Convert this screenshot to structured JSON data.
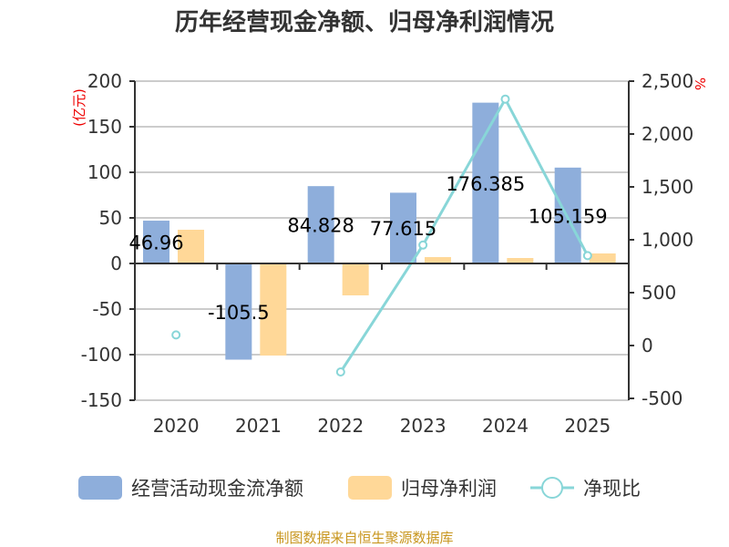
{
  "chart_data": {
    "type": "bar",
    "title": "历年经营现金净额、归母净利润情况",
    "categories": [
      "2020",
      "2021",
      "2022",
      "2023",
      "2024",
      "2025"
    ],
    "left_axis": {
      "label": "(亿元)",
      "range": [
        -150,
        200
      ],
      "ticks": [
        200,
        150,
        100,
        50,
        0,
        -50,
        -100,
        -150
      ]
    },
    "right_axis": {
      "label": "%",
      "range": [
        -500,
        2500
      ],
      "ticks": [
        2500,
        2000,
        1500,
        1000,
        500,
        0,
        -500
      ],
      "tick_labels": [
        "2,500",
        "2,000",
        "1,500",
        "1,000",
        "500",
        "0",
        "-500"
      ]
    },
    "series": [
      {
        "name": "经营活动现金流净额",
        "type": "bar",
        "axis": "left",
        "color": "#8eaedb",
        "values": [
          46.96,
          -105.5,
          84.828,
          77.615,
          176.385,
          105.159
        ],
        "labels": [
          "46.96",
          "-105.5",
          "84.828",
          "77.615",
          "176.385",
          "105.159"
        ]
      },
      {
        "name": "归母净利润",
        "type": "bar",
        "axis": "left",
        "color": "#ffd898",
        "values": [
          37,
          -101,
          -35,
          7,
          6,
          11
        ]
      },
      {
        "name": "净现比",
        "type": "line",
        "axis": "right",
        "color": "#88d6d8",
        "values": [
          100,
          null,
          -250,
          950,
          2330,
          850
        ]
      }
    ],
    "grid": true,
    "legend_position": "bottom",
    "source": "制图数据来自恒生聚源数据库"
  }
}
